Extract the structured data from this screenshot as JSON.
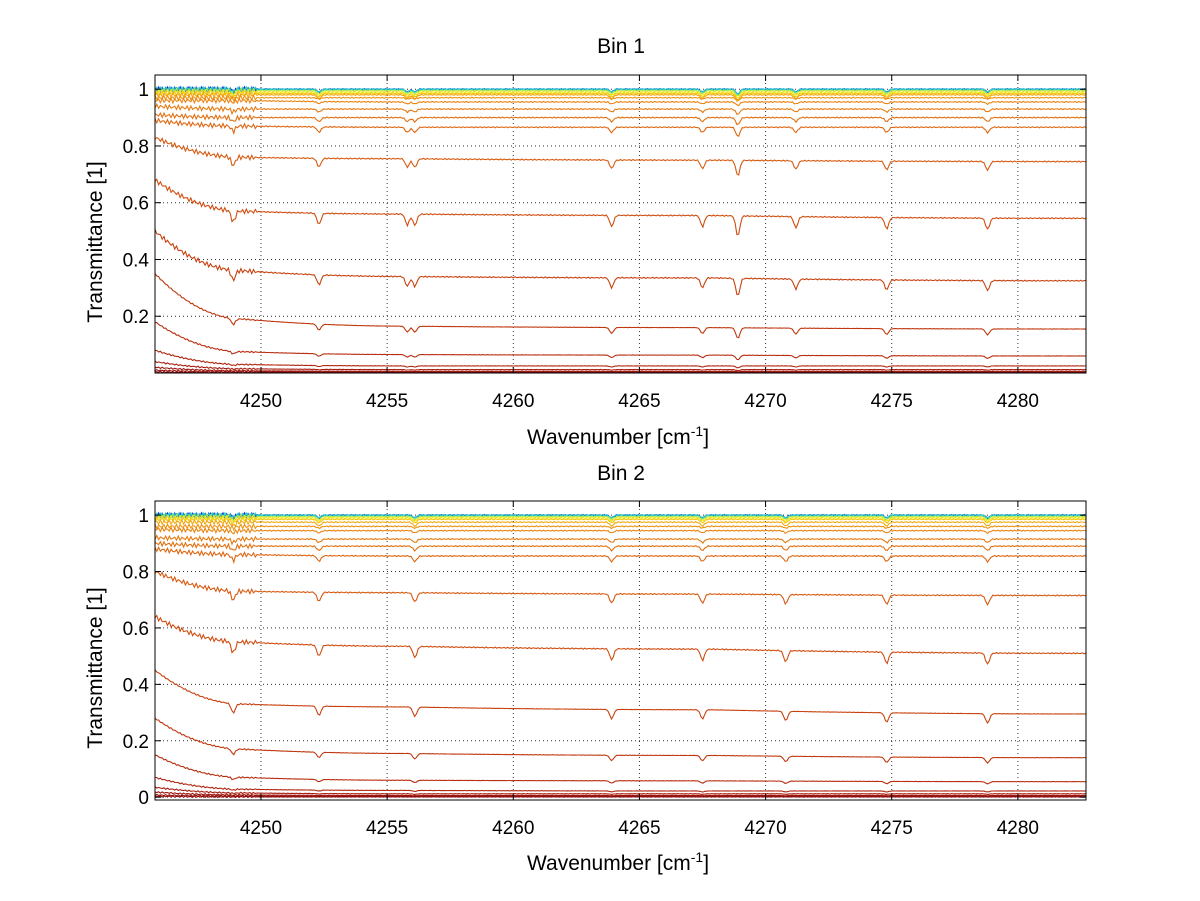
{
  "chart_data": [
    {
      "type": "line",
      "title": "Bin 1",
      "xlabel": "Wavenumber [cm",
      "xlabel_sup": "-1",
      "xlabel_end": "]",
      "ylabel": "Transmittance [1]",
      "xlim": [
        4245.8,
        4282.7
      ],
      "ylim": [
        0,
        1.05
      ],
      "xticks": [
        4250,
        4255,
        4260,
        4265,
        4270,
        4275,
        4280
      ],
      "xtick_labels": [
        "4250",
        "4255",
        "4260",
        "4265",
        "4270",
        "4275",
        "4280"
      ],
      "yticks": [
        0.2,
        0.4,
        0.6,
        0.8,
        1
      ],
      "ytick_labels": [
        "0.2",
        "0.4",
        "0.6",
        "0.8",
        "1"
      ],
      "grid": true,
      "absorption_lines": [
        4248.9,
        4252.3,
        4255.8,
        4256.1,
        4263.9,
        4267.5,
        4268.9,
        4271.2,
        4274.8,
        4278.8
      ],
      "series": [
        {
          "color": "#0a2fd0",
          "values": [
            1.0,
            1.0,
            1.0,
            1.0,
            1.0
          ]
        },
        {
          "color": "#1f7fe0",
          "values": [
            1.0,
            1.0,
            1.0,
            1.0,
            1.0
          ]
        },
        {
          "color": "#2ad0c8",
          "values": [
            1.0,
            1.0,
            1.0,
            1.0,
            1.0
          ]
        },
        {
          "color": "#a8e84a",
          "values": [
            0.995,
            0.995,
            0.995,
            0.995,
            0.995
          ]
        },
        {
          "color": "#f0e81a",
          "values": [
            0.99,
            0.99,
            0.99,
            0.99,
            0.99
          ]
        },
        {
          "color": "#f5c812",
          "values": [
            0.985,
            0.985,
            0.985,
            0.985,
            0.985
          ]
        },
        {
          "color": "#f2a812",
          "values": [
            0.98,
            0.98,
            0.98,
            0.98,
            0.98
          ]
        },
        {
          "color": "#ee9210",
          "values": [
            0.97,
            0.97,
            0.97,
            0.97,
            0.97
          ]
        },
        {
          "color": "#ea8410",
          "values": [
            0.96,
            0.96,
            0.955,
            0.955,
            0.955
          ]
        },
        {
          "color": "#e67a10",
          "values": [
            0.94,
            0.93,
            0.93,
            0.93,
            0.93
          ]
        },
        {
          "color": "#e27010",
          "values": [
            0.91,
            0.9,
            0.9,
            0.9,
            0.9
          ]
        },
        {
          "color": "#de6610",
          "values": [
            0.89,
            0.87,
            0.866,
            0.866,
            0.866
          ]
        },
        {
          "color": "#d85a10",
          "values": [
            0.83,
            0.76,
            0.755,
            0.75,
            0.745
          ]
        },
        {
          "color": "#d04e10",
          "values": [
            0.68,
            0.57,
            0.56,
            0.555,
            0.545
          ]
        },
        {
          "color": "#c84210",
          "values": [
            0.5,
            0.36,
            0.34,
            0.335,
            0.325
          ]
        },
        {
          "color": "#c03810",
          "values": [
            0.35,
            0.19,
            0.165,
            0.16,
            0.155
          ]
        },
        {
          "color": "#b82e10",
          "values": [
            0.18,
            0.075,
            0.065,
            0.063,
            0.06
          ]
        },
        {
          "color": "#b02610",
          "values": [
            0.08,
            0.03,
            0.025,
            0.025,
            0.025
          ]
        },
        {
          "color": "#a81e10",
          "values": [
            0.04,
            0.015,
            0.012,
            0.012,
            0.012
          ]
        },
        {
          "color": "#a01810",
          "values": [
            0.02,
            0.008,
            0.006,
            0.006,
            0.006
          ]
        },
        {
          "color": "#981410",
          "values": [
            0.01,
            0.004,
            0.003,
            0.003,
            0.003
          ]
        },
        {
          "color": "#901010",
          "values": [
            0.004,
            0.001,
            0.001,
            0.001,
            0.001
          ]
        }
      ]
    },
    {
      "type": "line",
      "title": "Bin 2",
      "xlabel": "Wavenumber [cm",
      "xlabel_sup": "-1",
      "xlabel_end": "]",
      "ylabel": "Transmittance [1]",
      "xlim": [
        4245.8,
        4282.7
      ],
      "ylim": [
        -0.01,
        1.05
      ],
      "xticks": [
        4250,
        4255,
        4260,
        4265,
        4270,
        4275,
        4280
      ],
      "xtick_labels": [
        "4250",
        "4255",
        "4260",
        "4265",
        "4270",
        "4275",
        "4280"
      ],
      "yticks": [
        0,
        0.2,
        0.4,
        0.6,
        0.8,
        1
      ],
      "ytick_labels": [
        "0",
        "0.2",
        "0.4",
        "0.6",
        "0.8",
        "1"
      ],
      "grid": true,
      "absorption_lines": [
        4248.9,
        4252.3,
        4256.1,
        4263.9,
        4267.5,
        4270.8,
        4274.8,
        4278.8
      ],
      "series": [
        {
          "color": "#0a2fd0",
          "values": [
            1.0,
            1.0,
            1.0,
            1.0,
            1.0
          ]
        },
        {
          "color": "#1f7fe0",
          "values": [
            1.0,
            1.0,
            1.0,
            1.0,
            1.0
          ]
        },
        {
          "color": "#2ad0c8",
          "values": [
            1.0,
            1.0,
            1.0,
            1.0,
            1.0
          ]
        },
        {
          "color": "#a8e84a",
          "values": [
            0.995,
            0.995,
            0.995,
            0.995,
            0.995
          ]
        },
        {
          "color": "#f0e81a",
          "values": [
            0.99,
            0.99,
            0.99,
            0.99,
            0.99
          ]
        },
        {
          "color": "#f5c812",
          "values": [
            0.985,
            0.985,
            0.985,
            0.985,
            0.985
          ]
        },
        {
          "color": "#f2a812",
          "values": [
            0.975,
            0.975,
            0.975,
            0.975,
            0.975
          ]
        },
        {
          "color": "#ee9210",
          "values": [
            0.96,
            0.96,
            0.96,
            0.96,
            0.96
          ]
        },
        {
          "color": "#ea8410",
          "values": [
            0.95,
            0.945,
            0.945,
            0.945,
            0.945
          ]
        },
        {
          "color": "#e67a10",
          "values": [
            0.92,
            0.915,
            0.915,
            0.915,
            0.915
          ]
        },
        {
          "color": "#e27010",
          "values": [
            0.9,
            0.89,
            0.89,
            0.89,
            0.89
          ]
        },
        {
          "color": "#de6610",
          "values": [
            0.88,
            0.86,
            0.855,
            0.855,
            0.855
          ]
        },
        {
          "color": "#d85a10",
          "values": [
            0.8,
            0.73,
            0.725,
            0.72,
            0.715
          ]
        },
        {
          "color": "#d04e10",
          "values": [
            0.64,
            0.55,
            0.535,
            0.525,
            0.51
          ]
        },
        {
          "color": "#c84210",
          "values": [
            0.45,
            0.33,
            0.32,
            0.31,
            0.295
          ]
        },
        {
          "color": "#c03810",
          "values": [
            0.28,
            0.17,
            0.155,
            0.148,
            0.14
          ]
        },
        {
          "color": "#b82e10",
          "values": [
            0.15,
            0.07,
            0.06,
            0.058,
            0.055
          ]
        },
        {
          "color": "#b02610",
          "values": [
            0.07,
            0.028,
            0.024,
            0.022,
            0.022
          ]
        },
        {
          "color": "#a81e10",
          "values": [
            0.035,
            0.015,
            0.012,
            0.012,
            0.012
          ]
        },
        {
          "color": "#a01810",
          "values": [
            0.018,
            0.008,
            0.006,
            0.006,
            0.006
          ]
        },
        {
          "color": "#981410",
          "values": [
            0.008,
            0.004,
            0.003,
            0.003,
            0.003
          ]
        },
        {
          "color": "#901010",
          "values": [
            0.003,
            0.001,
            0.001,
            0.001,
            0.001
          ]
        }
      ]
    }
  ]
}
